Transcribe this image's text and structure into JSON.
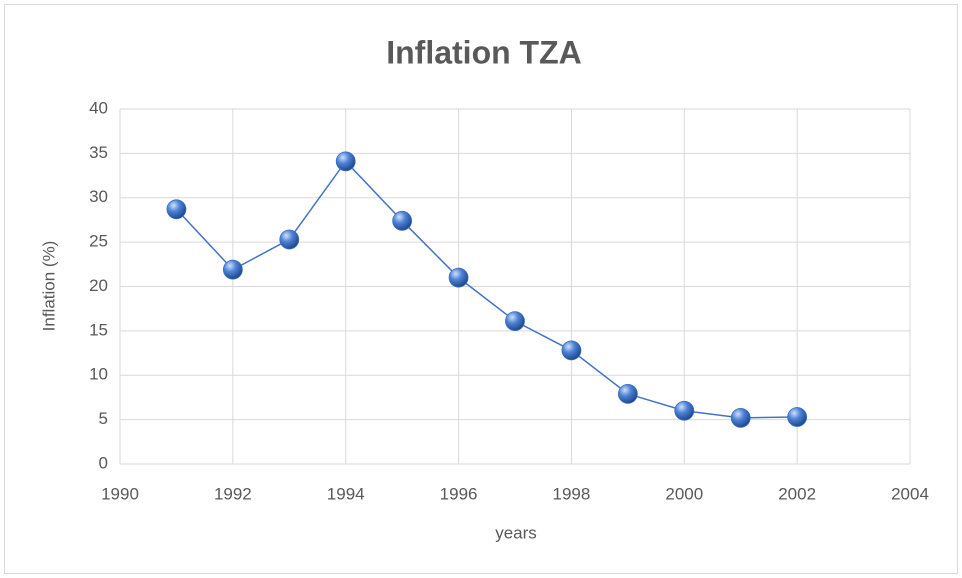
{
  "chart_data": {
    "type": "line",
    "title": "Inflation TZA",
    "x_label": "years",
    "y_label": "Inflation (%)",
    "x": [
      1991,
      1992,
      1993,
      1994,
      1995,
      1996,
      1997,
      1998,
      1999,
      2000,
      2001,
      2002
    ],
    "values": [
      28.7,
      21.9,
      25.3,
      34.1,
      27.4,
      21.0,
      16.1,
      12.8,
      7.9,
      6.0,
      5.2,
      5.3
    ],
    "color": "#4472c4",
    "xlim": [
      1990,
      2004
    ],
    "xticks": [
      1990,
      1992,
      1994,
      1996,
      1998,
      2000,
      2002,
      2004
    ],
    "ylim": [
      0,
      40
    ],
    "yticks": [
      0,
      5,
      10,
      15,
      20,
      25,
      30,
      35,
      40
    ],
    "grid": true
  }
}
